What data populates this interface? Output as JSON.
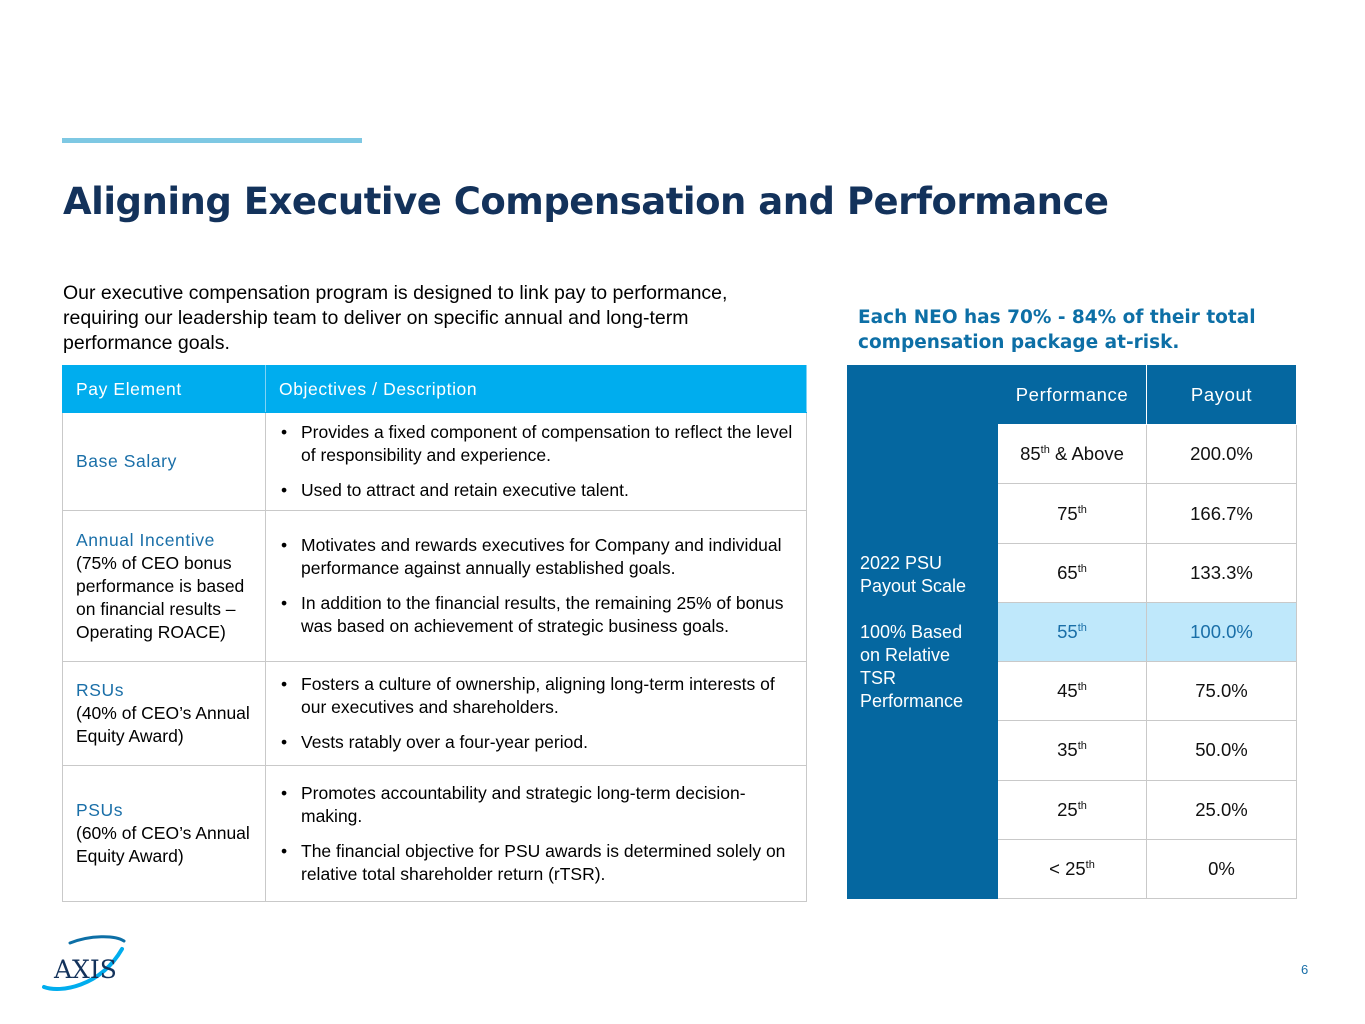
{
  "slide": {
    "title": "Aligning Executive Compensation and Performance",
    "intro": "Our executive compensation program is designed to link pay to performance, requiring our leadership team to deliver on specific annual and long-term performance goals.",
    "callout": "Each NEO has 70% - 84% of their total compensation package at-risk.",
    "page_number": "6"
  },
  "pay_table": {
    "headers": [
      "Pay Element",
      "Objectives / Description"
    ],
    "rows": [
      {
        "name": "Base Salary",
        "note": "",
        "bullets": [
          "Provides a fixed component of compensation to reflect the level of responsibility and experience.",
          "Used to attract and retain executive talent."
        ]
      },
      {
        "name": "Annual Incentive",
        "note": "(75% of CEO bonus performance is based on financial results – Operating ROACE)",
        "bullets": [
          "Motivates and rewards executives for Company and individual performance against annually established goals.",
          "In addition to the financial results, the remaining 25% of bonus was based on achievement of strategic business goals."
        ]
      },
      {
        "name": "RSUs",
        "note": "(40% of CEO’s Annual Equity Award)",
        "bullets": [
          "Fosters a culture of ownership, aligning long-term interests of our executives and shareholders.",
          "Vests ratably over a four-year period."
        ]
      },
      {
        "name": "PSUs",
        "note": "(60% of CEO’s Annual Equity Award)",
        "bullets": [
          "Promotes accountability and strategic long-term decision-making.",
          "The financial objective for PSU awards is determined solely on relative total shareholder return (rTSR)."
        ]
      }
    ]
  },
  "psu_table": {
    "side_label_1": "2022 PSU Payout Scale",
    "side_label_2": "100% Based on Relative TSR Performance",
    "headers": [
      "Performance",
      "Payout"
    ],
    "rows": [
      {
        "prefix": "85",
        "sup": "th",
        "suffix": " & Above",
        "payout": "200.0%"
      },
      {
        "prefix": "75",
        "sup": "th",
        "suffix": "",
        "payout": "166.7%"
      },
      {
        "prefix": "65",
        "sup": "th",
        "suffix": "",
        "payout": "133.3%"
      },
      {
        "prefix": "55",
        "sup": "th",
        "suffix": "",
        "payout": "100.0%"
      },
      {
        "prefix": "45",
        "sup": "th",
        "suffix": "",
        "payout": "75.0%"
      },
      {
        "prefix": "35",
        "sup": "th",
        "suffix": "",
        "payout": "50.0%"
      },
      {
        "prefix": "25",
        "sup": "th",
        "suffix": "",
        "payout": "25.0%"
      },
      {
        "prefix": "< 25",
        "sup": "th",
        "suffix": "",
        "payout": "0%"
      }
    ]
  },
  "logo": {
    "text": "AXIS",
    "icon": "axis-logo-icon"
  },
  "colors": {
    "title": "#13325b",
    "accent_line": "#7ec8e3",
    "table_header": "#00adee",
    "psu_dark": "#0567a0",
    "highlight_row": "#bfe8fb",
    "link_blue": "#1a6fa8"
  }
}
